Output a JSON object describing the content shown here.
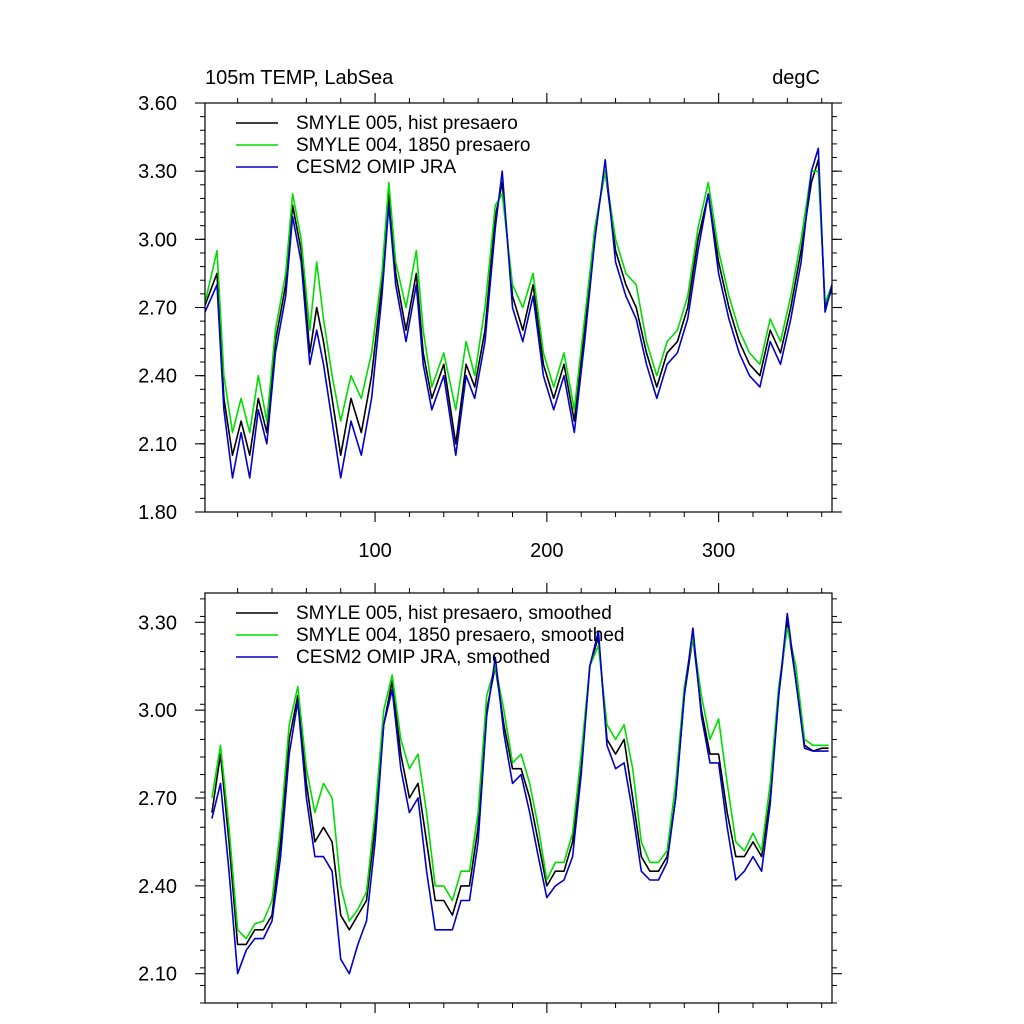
{
  "chart_data": [
    {
      "type": "line",
      "title": "105m TEMP, LabSea",
      "units": "degC",
      "xlim": [
        1,
        366
      ],
      "ylim": [
        1.8,
        3.6
      ],
      "yticks": [
        1.8,
        2.1,
        2.4,
        2.7,
        3.0,
        3.3,
        3.6
      ],
      "ytick_labels": [
        "1.80",
        "2.10",
        "2.40",
        "2.70",
        "3.00",
        "3.30",
        "3.60"
      ],
      "xticks": [
        100,
        200,
        300
      ],
      "xtick_labels": [
        "100",
        "200",
        "300"
      ],
      "legend_position": "top-left",
      "series": [
        {
          "name": "SMYLE 005, hist presaero",
          "color": "#000000",
          "x": [
            1,
            8,
            12,
            17,
            22,
            27,
            32,
            37,
            42,
            48,
            52,
            57,
            62,
            66,
            70,
            75,
            80,
            86,
            92,
            98,
            104,
            108,
            112,
            118,
            124,
            128,
            133,
            140,
            147,
            153,
            158,
            164,
            170,
            174,
            180,
            186,
            192,
            198,
            204,
            210,
            216,
            222,
            228,
            234,
            240,
            246,
            252,
            258,
            264,
            270,
            276,
            282,
            288,
            294,
            300,
            306,
            312,
            318,
            324,
            330,
            336,
            342,
            348,
            354,
            358,
            362,
            366
          ],
          "values": [
            2.71,
            2.85,
            2.3,
            2.05,
            2.2,
            2.05,
            2.3,
            2.15,
            2.55,
            2.8,
            3.15,
            2.95,
            2.5,
            2.7,
            2.55,
            2.3,
            2.05,
            2.3,
            2.15,
            2.4,
            2.8,
            3.2,
            2.85,
            2.6,
            2.85,
            2.5,
            2.3,
            2.45,
            2.1,
            2.45,
            2.35,
            2.6,
            3.1,
            3.25,
            2.75,
            2.6,
            2.8,
            2.45,
            2.3,
            2.45,
            2.2,
            2.6,
            3.05,
            3.3,
            2.95,
            2.8,
            2.7,
            2.5,
            2.35,
            2.5,
            2.55,
            2.7,
            3.0,
            3.2,
            2.9,
            2.7,
            2.55,
            2.45,
            2.4,
            2.6,
            2.5,
            2.7,
            2.95,
            3.25,
            3.35,
            2.7,
            2.78
          ]
        },
        {
          "name": "SMYLE 004, 1850 presaero",
          "color": "#00dd00",
          "x": [
            1,
            8,
            12,
            17,
            22,
            27,
            32,
            37,
            42,
            48,
            52,
            57,
            62,
            66,
            70,
            75,
            80,
            86,
            92,
            98,
            104,
            108,
            112,
            118,
            124,
            128,
            133,
            140,
            147,
            153,
            158,
            164,
            170,
            174,
            180,
            186,
            192,
            198,
            204,
            210,
            216,
            222,
            228,
            234,
            240,
            246,
            252,
            258,
            264,
            270,
            276,
            282,
            288,
            294,
            300,
            306,
            312,
            318,
            324,
            330,
            336,
            342,
            348,
            354,
            358,
            362,
            366
          ],
          "values": [
            2.72,
            2.95,
            2.4,
            2.15,
            2.3,
            2.15,
            2.4,
            2.2,
            2.6,
            2.85,
            3.2,
            3.0,
            2.6,
            2.9,
            2.65,
            2.4,
            2.2,
            2.4,
            2.3,
            2.5,
            2.85,
            3.25,
            2.9,
            2.7,
            2.95,
            2.6,
            2.35,
            2.5,
            2.25,
            2.55,
            2.4,
            2.7,
            3.15,
            3.2,
            2.8,
            2.7,
            2.85,
            2.5,
            2.35,
            2.5,
            2.25,
            2.65,
            3.05,
            3.3,
            3.0,
            2.85,
            2.8,
            2.55,
            2.4,
            2.55,
            2.6,
            2.75,
            3.05,
            3.25,
            2.95,
            2.75,
            2.6,
            2.5,
            2.45,
            2.65,
            2.55,
            2.75,
            3.0,
            3.3,
            3.3,
            2.72,
            2.8
          ]
        },
        {
          "name": "CESM2 OMIP JRA",
          "color": "#0000cc",
          "x": [
            1,
            8,
            12,
            17,
            22,
            27,
            32,
            37,
            42,
            48,
            52,
            57,
            62,
            66,
            70,
            75,
            80,
            86,
            92,
            98,
            104,
            108,
            112,
            118,
            124,
            128,
            133,
            140,
            147,
            153,
            158,
            164,
            170,
            174,
            180,
            186,
            192,
            198,
            204,
            210,
            216,
            222,
            228,
            234,
            240,
            246,
            252,
            258,
            264,
            270,
            276,
            282,
            288,
            294,
            300,
            306,
            312,
            318,
            324,
            330,
            336,
            342,
            348,
            354,
            358,
            362,
            366
          ],
          "values": [
            2.68,
            2.8,
            2.25,
            1.95,
            2.15,
            1.95,
            2.25,
            2.1,
            2.5,
            2.75,
            3.1,
            2.9,
            2.45,
            2.6,
            2.45,
            2.2,
            1.95,
            2.2,
            2.05,
            2.3,
            2.75,
            3.15,
            2.8,
            2.55,
            2.8,
            2.45,
            2.25,
            2.4,
            2.05,
            2.4,
            2.3,
            2.55,
            3.05,
            3.3,
            2.7,
            2.55,
            2.75,
            2.4,
            2.25,
            2.4,
            2.15,
            2.55,
            3.0,
            3.35,
            2.9,
            2.75,
            2.65,
            2.45,
            2.3,
            2.45,
            2.5,
            2.65,
            2.95,
            3.2,
            2.85,
            2.65,
            2.5,
            2.4,
            2.35,
            2.55,
            2.45,
            2.65,
            2.9,
            3.3,
            3.4,
            2.68,
            2.8
          ]
        }
      ]
    },
    {
      "type": "line",
      "xlim": [
        1,
        366
      ],
      "ylim": [
        2.0,
        3.4
      ],
      "yticks": [
        2.1,
        2.4,
        2.7,
        3.0,
        3.3
      ],
      "ytick_labels": [
        "2.10",
        "2.40",
        "2.70",
        "3.00",
        "3.30"
      ],
      "legend_position": "top-left",
      "series": [
        {
          "name": "SMYLE 005, hist presaero, smoothed",
          "color": "#000000",
          "x": [
            5,
            10,
            15,
            20,
            25,
            30,
            35,
            40,
            45,
            50,
            55,
            60,
            65,
            70,
            75,
            80,
            85,
            90,
            95,
            100,
            105,
            110,
            115,
            120,
            125,
            130,
            135,
            140,
            145,
            150,
            155,
            160,
            165,
            170,
            175,
            180,
            185,
            190,
            195,
            200,
            205,
            210,
            215,
            220,
            225,
            230,
            235,
            240,
            245,
            250,
            255,
            260,
            265,
            270,
            275,
            280,
            285,
            290,
            295,
            300,
            305,
            310,
            315,
            320,
            325,
            330,
            335,
            340,
            345,
            350,
            355,
            360,
            364
          ],
          "values": [
            2.65,
            2.85,
            2.55,
            2.2,
            2.2,
            2.25,
            2.25,
            2.3,
            2.55,
            2.9,
            3.05,
            2.75,
            2.55,
            2.6,
            2.55,
            2.3,
            2.25,
            2.3,
            2.35,
            2.6,
            2.95,
            3.1,
            2.85,
            2.7,
            2.75,
            2.55,
            2.35,
            2.35,
            2.3,
            2.4,
            2.4,
            2.6,
            3.0,
            3.15,
            2.95,
            2.8,
            2.8,
            2.7,
            2.55,
            2.4,
            2.45,
            2.45,
            2.55,
            2.8,
            3.15,
            3.25,
            2.9,
            2.85,
            2.9,
            2.7,
            2.5,
            2.45,
            2.45,
            2.5,
            2.7,
            3.05,
            3.25,
            3.0,
            2.85,
            2.85,
            2.65,
            2.5,
            2.5,
            2.55,
            2.5,
            2.7,
            3.05,
            3.3,
            3.1,
            2.88,
            2.86,
            2.87,
            2.87
          ]
        },
        {
          "name": "SMYLE 004, 1850 presaero, smoothed",
          "color": "#00dd00",
          "x": [
            5,
            10,
            15,
            20,
            25,
            30,
            35,
            40,
            45,
            50,
            55,
            60,
            65,
            70,
            75,
            80,
            85,
            90,
            95,
            100,
            105,
            110,
            115,
            120,
            125,
            130,
            135,
            140,
            145,
            150,
            155,
            160,
            165,
            170,
            175,
            180,
            185,
            190,
            195,
            200,
            205,
            210,
            215,
            220,
            225,
            230,
            235,
            240,
            245,
            250,
            255,
            260,
            265,
            270,
            275,
            280,
            285,
            290,
            295,
            300,
            305,
            310,
            315,
            320,
            325,
            330,
            335,
            340,
            345,
            350,
            355,
            360,
            364
          ],
          "values": [
            2.7,
            2.88,
            2.6,
            2.25,
            2.22,
            2.27,
            2.28,
            2.35,
            2.6,
            2.95,
            3.08,
            2.8,
            2.65,
            2.75,
            2.7,
            2.4,
            2.28,
            2.32,
            2.38,
            2.65,
            3.0,
            3.12,
            2.9,
            2.8,
            2.85,
            2.65,
            2.4,
            2.4,
            2.35,
            2.45,
            2.45,
            2.65,
            3.05,
            3.15,
            3.0,
            2.82,
            2.85,
            2.75,
            2.6,
            2.42,
            2.48,
            2.48,
            2.58,
            2.85,
            3.15,
            3.22,
            2.95,
            2.9,
            2.95,
            2.8,
            2.55,
            2.48,
            2.48,
            2.52,
            2.75,
            3.08,
            3.25,
            3.05,
            2.9,
            2.97,
            2.75,
            2.55,
            2.52,
            2.58,
            2.52,
            2.75,
            3.08,
            3.28,
            3.15,
            2.9,
            2.88,
            2.88,
            2.88
          ]
        },
        {
          "name": "CESM2 OMIP JRA, smoothed",
          "color": "#0000cc",
          "x": [
            5,
            10,
            15,
            20,
            25,
            30,
            35,
            40,
            45,
            50,
            55,
            60,
            65,
            70,
            75,
            80,
            85,
            90,
            95,
            100,
            105,
            110,
            115,
            120,
            125,
            130,
            135,
            140,
            145,
            150,
            155,
            160,
            165,
            170,
            175,
            180,
            185,
            190,
            195,
            200,
            205,
            210,
            215,
            220,
            225,
            230,
            235,
            240,
            245,
            250,
            255,
            260,
            265,
            270,
            275,
            280,
            285,
            290,
            295,
            300,
            305,
            310,
            315,
            320,
            325,
            330,
            335,
            340,
            345,
            350,
            355,
            360,
            364
          ],
          "values": [
            2.63,
            2.75,
            2.45,
            2.1,
            2.18,
            2.22,
            2.22,
            2.28,
            2.5,
            2.85,
            3.03,
            2.7,
            2.5,
            2.5,
            2.45,
            2.15,
            2.1,
            2.2,
            2.28,
            2.55,
            2.95,
            3.07,
            2.8,
            2.65,
            2.7,
            2.45,
            2.25,
            2.25,
            2.25,
            2.35,
            2.35,
            2.55,
            2.98,
            3.18,
            2.92,
            2.75,
            2.78,
            2.65,
            2.5,
            2.36,
            2.4,
            2.42,
            2.5,
            2.78,
            3.15,
            3.27,
            2.88,
            2.8,
            2.82,
            2.65,
            2.45,
            2.42,
            2.42,
            2.48,
            2.7,
            3.05,
            3.28,
            2.98,
            2.82,
            2.82,
            2.6,
            2.42,
            2.45,
            2.5,
            2.45,
            2.68,
            3.05,
            3.33,
            3.1,
            2.87,
            2.86,
            2.86,
            2.86
          ]
        }
      ]
    }
  ]
}
